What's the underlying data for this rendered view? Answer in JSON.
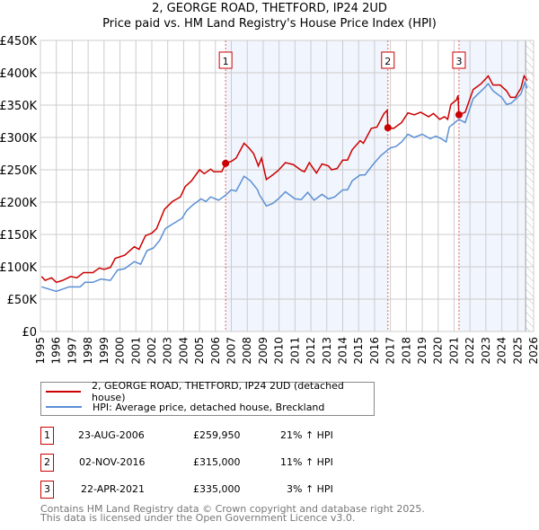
{
  "chart_data": {
    "type": "line",
    "title": "2, GEORGE ROAD, THETFORD, IP24 2UD",
    "subtitle": "Price paid vs. HM Land Registry's House Price Index (HPI)",
    "xlim": [
      1995,
      2026
    ],
    "ylim": [
      0,
      450000
    ],
    "x_ticks": [
      "1995",
      "1996",
      "1997",
      "1998",
      "1999",
      "2000",
      "2001",
      "2002",
      "2003",
      "2004",
      "2005",
      "2006",
      "2007",
      "2008",
      "2009",
      "2010",
      "2011",
      "2012",
      "2013",
      "2014",
      "2015",
      "2016",
      "2017",
      "2018",
      "2019",
      "2020",
      "2021",
      "2022",
      "2023",
      "2024",
      "2025",
      "2026"
    ],
    "y_ticks": [
      "£0",
      "£50K",
      "£100K",
      "£150K",
      "£200K",
      "£250K",
      "£300K",
      "£350K",
      "£400K",
      "£450K"
    ],
    "grid": true,
    "series": [
      {
        "name": "2, GEORGE ROAD, THETFORD, IP24 2UD (detached house)",
        "color": "#cc0000",
        "unit": "£K",
        "points": [
          [
            1995.07,
            85
          ],
          [
            1995.3,
            79
          ],
          [
            1995.7,
            83
          ],
          [
            1996.0,
            76
          ],
          [
            1996.4,
            79
          ],
          [
            1996.9,
            85
          ],
          [
            1997.3,
            83
          ],
          [
            1997.7,
            91
          ],
          [
            1998.3,
            91
          ],
          [
            1998.7,
            98
          ],
          [
            1999.0,
            96
          ],
          [
            1999.4,
            99
          ],
          [
            1999.7,
            113
          ],
          [
            2000.3,
            118
          ],
          [
            2000.9,
            131
          ],
          [
            2001.2,
            127
          ],
          [
            2001.6,
            148
          ],
          [
            2002.0,
            152
          ],
          [
            2002.3,
            159
          ],
          [
            2002.8,
            189
          ],
          [
            2003.3,
            201
          ],
          [
            2003.8,
            208
          ],
          [
            2004.1,
            224
          ],
          [
            2004.5,
            233
          ],
          [
            2005.0,
            250
          ],
          [
            2005.3,
            244
          ],
          [
            2005.7,
            251
          ],
          [
            2005.9,
            247
          ],
          [
            2006.4,
            247
          ],
          [
            2006.64,
            260
          ],
          [
            2007.0,
            263
          ],
          [
            2007.3,
            268
          ],
          [
            2007.8,
            291
          ],
          [
            2008.1,
            284
          ],
          [
            2008.4,
            275
          ],
          [
            2008.7,
            256
          ],
          [
            2008.9,
            268
          ],
          [
            2009.2,
            235
          ],
          [
            2009.6,
            242
          ],
          [
            2009.95,
            249
          ],
          [
            2010.4,
            261
          ],
          [
            2010.9,
            258
          ],
          [
            2011.4,
            249
          ],
          [
            2011.6,
            247
          ],
          [
            2011.9,
            261
          ],
          [
            2012.35,
            245
          ],
          [
            2012.7,
            259
          ],
          [
            2013.1,
            256
          ],
          [
            2013.3,
            250
          ],
          [
            2013.65,
            252
          ],
          [
            2014.0,
            265
          ],
          [
            2014.3,
            265
          ],
          [
            2014.6,
            281
          ],
          [
            2015.1,
            295
          ],
          [
            2015.3,
            291
          ],
          [
            2015.8,
            314
          ],
          [
            2016.15,
            316
          ],
          [
            2016.6,
            337
          ],
          [
            2016.8,
            342
          ],
          [
            2016.84,
            315
          ],
          [
            2017.2,
            314
          ],
          [
            2017.7,
            323
          ],
          [
            2018.1,
            338
          ],
          [
            2018.5,
            335
          ],
          [
            2018.9,
            339
          ],
          [
            2019.4,
            332
          ],
          [
            2019.7,
            337
          ],
          [
            2020.1,
            328
          ],
          [
            2020.4,
            332
          ],
          [
            2020.6,
            328
          ],
          [
            2020.8,
            351
          ],
          [
            2021.15,
            358
          ],
          [
            2021.25,
            365
          ],
          [
            2021.3,
            335
          ],
          [
            2021.7,
            339
          ],
          [
            2022.2,
            374
          ],
          [
            2022.7,
            383
          ],
          [
            2023.15,
            395
          ],
          [
            2023.45,
            381
          ],
          [
            2023.9,
            381
          ],
          [
            2024.3,
            372
          ],
          [
            2024.55,
            362
          ],
          [
            2024.85,
            362
          ],
          [
            2025.2,
            376
          ],
          [
            2025.4,
            395
          ],
          [
            2025.6,
            388
          ]
        ]
      },
      {
        "name": "HPI: Average price, detached house, Breckland",
        "color": "#5b8fd4",
        "unit": "£K",
        "points": [
          [
            1995.07,
            69
          ],
          [
            1996.0,
            62
          ],
          [
            1996.8,
            69
          ],
          [
            1997.5,
            69
          ],
          [
            1997.8,
            76
          ],
          [
            1998.3,
            76
          ],
          [
            1998.8,
            81
          ],
          [
            1999.4,
            79
          ],
          [
            1999.85,
            95
          ],
          [
            2000.3,
            97
          ],
          [
            2000.9,
            108
          ],
          [
            2001.3,
            104
          ],
          [
            2001.7,
            125
          ],
          [
            2002.1,
            129
          ],
          [
            2002.5,
            141
          ],
          [
            2002.85,
            159
          ],
          [
            2003.3,
            166
          ],
          [
            2003.9,
            175
          ],
          [
            2004.2,
            187
          ],
          [
            2004.6,
            196
          ],
          [
            2005.1,
            205
          ],
          [
            2005.4,
            201
          ],
          [
            2005.7,
            208
          ],
          [
            2006.2,
            203
          ],
          [
            2006.6,
            210
          ],
          [
            2007.0,
            219
          ],
          [
            2007.3,
            217
          ],
          [
            2007.8,
            240
          ],
          [
            2008.2,
            233
          ],
          [
            2008.65,
            219
          ],
          [
            2008.75,
            212
          ],
          [
            2009.2,
            194
          ],
          [
            2009.6,
            198
          ],
          [
            2009.95,
            205
          ],
          [
            2010.4,
            216
          ],
          [
            2011.0,
            205
          ],
          [
            2011.4,
            204
          ],
          [
            2011.8,
            215
          ],
          [
            2012.2,
            203
          ],
          [
            2012.7,
            212
          ],
          [
            2013.1,
            205
          ],
          [
            2013.5,
            208
          ],
          [
            2014.0,
            219
          ],
          [
            2014.3,
            219
          ],
          [
            2014.6,
            233
          ],
          [
            2015.1,
            242
          ],
          [
            2015.4,
            242
          ],
          [
            2015.9,
            258
          ],
          [
            2016.4,
            272
          ],
          [
            2017.0,
            284
          ],
          [
            2017.35,
            286
          ],
          [
            2017.7,
            293
          ],
          [
            2018.1,
            305
          ],
          [
            2018.5,
            300
          ],
          [
            2019.0,
            305
          ],
          [
            2019.5,
            298
          ],
          [
            2019.85,
            302
          ],
          [
            2020.2,
            298
          ],
          [
            2020.5,
            293
          ],
          [
            2020.7,
            316
          ],
          [
            2021.3,
            328
          ],
          [
            2021.7,
            323
          ],
          [
            2022.2,
            360
          ],
          [
            2022.8,
            374
          ],
          [
            2023.15,
            383
          ],
          [
            2023.45,
            372
          ],
          [
            2024.0,
            362
          ],
          [
            2024.3,
            351
          ],
          [
            2024.6,
            353
          ],
          [
            2025.2,
            367
          ],
          [
            2025.45,
            385
          ],
          [
            2025.6,
            376
          ]
        ]
      }
    ],
    "sales": [
      {
        "label": "1",
        "x": 2006.64,
        "price": 259950,
        "date": "23-AUG-2006",
        "price_text": "£259,950",
        "hpi": "21% ↑ HPI"
      },
      {
        "label": "2",
        "x": 2016.84,
        "price": 315000,
        "date": "02-NOV-2016",
        "price_text": "£315,000",
        "hpi": "11% ↑ HPI"
      },
      {
        "label": "3",
        "x": 2021.31,
        "price": 335000,
        "date": "22-APR-2021",
        "price_text": "£335,000",
        "hpi": "3% ↑ HPI"
      }
    ],
    "shaded_ranges": [
      [
        2006.64,
        2016.84
      ],
      [
        2021.31,
        2025.5
      ]
    ],
    "forecast_from": 2025.5,
    "legend_position": "bottom"
  },
  "footer": {
    "line1": "Contains HM Land Registry data © Crown copyright and database right 2025.",
    "line2": "This data is licensed under the Open Government Licence v3.0."
  }
}
